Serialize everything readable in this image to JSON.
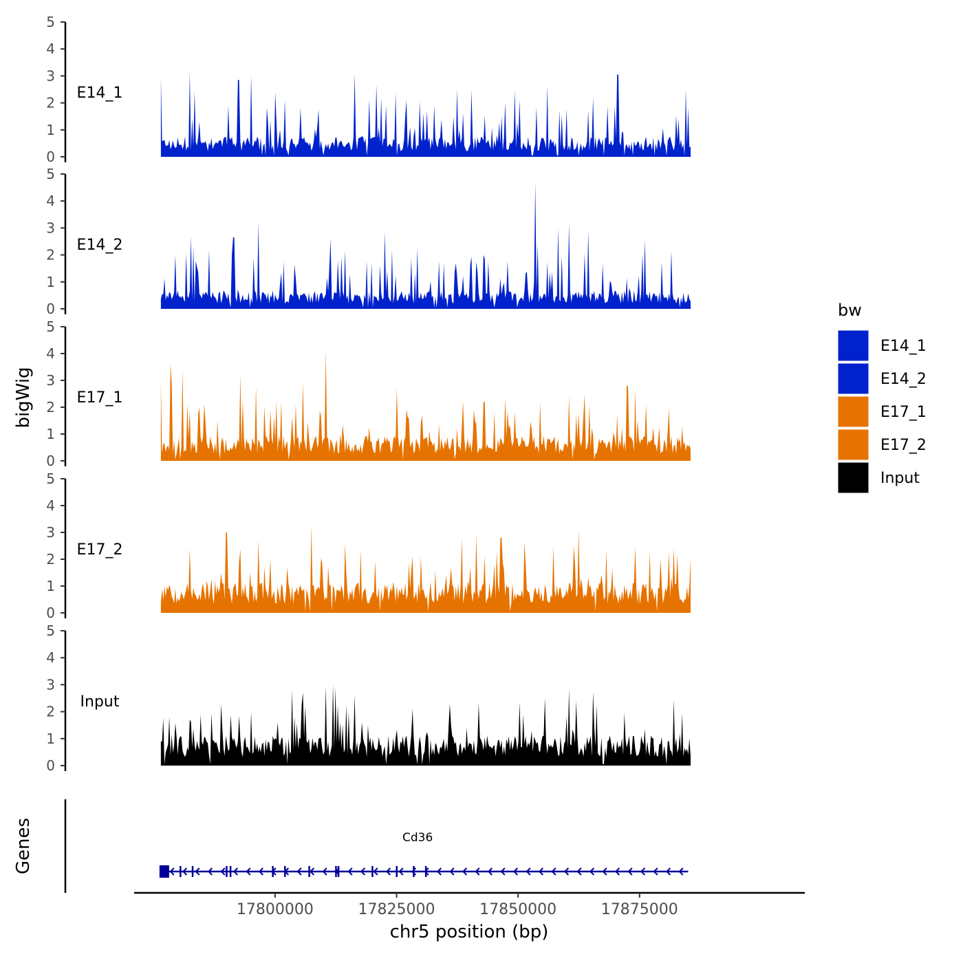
{
  "chart_data": {
    "type": "area",
    "title": "",
    "xlabel": "chr5 position (bp)",
    "ylabel": "bigWig",
    "genes_label": "Genes",
    "xlim": [
      17771000,
      17909000
    ],
    "x_ticks": [
      17800000,
      17825000,
      17850000,
      17875000
    ],
    "x_tick_labels": [
      "17800000",
      "17825000",
      "17850000",
      "17875000"
    ],
    "ylim": [
      0,
      5
    ],
    "y_ticks": [
      0,
      1,
      2,
      3,
      4,
      5
    ],
    "y_tick_labels": [
      "0",
      "1",
      "2",
      "3",
      "4",
      "5"
    ],
    "data_x_range": [
      17776500,
      17885500
    ],
    "legend": {
      "title": "bw",
      "position": "right",
      "entries": [
        {
          "label": "E14_1",
          "color": "#0022CC"
        },
        {
          "label": "E14_2",
          "color": "#0022CC"
        },
        {
          "label": "E17_1",
          "color": "#E67300"
        },
        {
          "label": "E17_2",
          "color": "#E67300"
        },
        {
          "label": "Input",
          "color": "#000000"
        }
      ]
    },
    "series": [
      {
        "name": "E14_1",
        "color": "#0022CC",
        "base_level": 0.6,
        "noise": 1.0,
        "seed": 11,
        "peaks": [
          [
            17776500,
            2.95
          ],
          [
            17782500,
            3.15
          ],
          [
            17792500,
            2.85
          ],
          [
            17800000,
            2.4
          ],
          [
            17837500,
            2.5
          ],
          [
            17865500,
            2.2
          ],
          [
            17870500,
            3.05
          ],
          [
            17884500,
            2.5
          ]
        ]
      },
      {
        "name": "E14_2",
        "color": "#0022CC",
        "base_level": 0.55,
        "noise": 1.05,
        "seed": 23,
        "peaks": [
          [
            17779500,
            2.0
          ],
          [
            17791500,
            2.65
          ],
          [
            17796500,
            3.2
          ],
          [
            17811500,
            2.6
          ],
          [
            17822500,
            2.85
          ],
          [
            17853500,
            4.7
          ],
          [
            17860500,
            3.15
          ],
          [
            17864500,
            2.9
          ],
          [
            17881500,
            2.15
          ]
        ]
      },
      {
        "name": "E17_1",
        "color": "#E67300",
        "base_level": 0.75,
        "noise": 1.0,
        "seed": 37,
        "peaks": [
          [
            17776500,
            3.0
          ],
          [
            17778500,
            3.6
          ],
          [
            17781000,
            3.4
          ],
          [
            17810500,
            4.1
          ],
          [
            17843000,
            2.2
          ],
          [
            17872500,
            2.8
          ],
          [
            17860500,
            2.4
          ]
        ]
      },
      {
        "name": "E17_2",
        "color": "#E67300",
        "base_level": 0.9,
        "noise": 1.0,
        "seed": 53,
        "peaks": [
          [
            17790000,
            3.0
          ],
          [
            17807500,
            3.25
          ],
          [
            17846500,
            2.8
          ],
          [
            17861500,
            2.5
          ],
          [
            17862500,
            3.1
          ],
          [
            17877000,
            2.3
          ]
        ]
      },
      {
        "name": "Input",
        "color": "#000000",
        "base_level": 0.9,
        "noise": 0.9,
        "seed": 71,
        "peaks": [
          [
            17803500,
            2.8
          ],
          [
            17810500,
            2.95
          ],
          [
            17812500,
            2.9
          ],
          [
            17855500,
            2.5
          ],
          [
            17865500,
            2.75
          ],
          [
            17882000,
            2.45
          ]
        ]
      }
    ],
    "genes": [
      {
        "name": "Cd36",
        "start": 17776500,
        "end": 17885000,
        "strand": "-",
        "color": "#000099",
        "exons": [
          17777500,
          17780500,
          17783000,
          17790000,
          17790800,
          17799500,
          17802000,
          17807000,
          17812500,
          17813000,
          17820000,
          17825000,
          17828500,
          17831000
        ]
      }
    ]
  }
}
